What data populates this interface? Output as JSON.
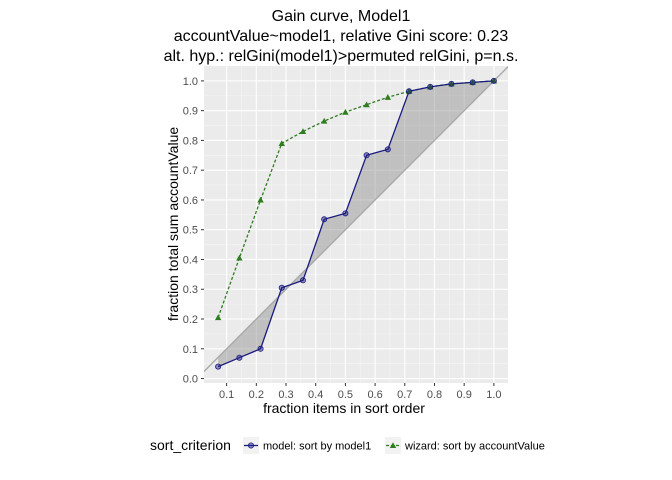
{
  "chart_data": {
    "type": "line",
    "title": [
      "Gain curve, Model1",
      "accountValue~model1, relative Gini score: 0.23",
      "alt. hyp.: relGini(model1)>permuted relGini, p=n.s."
    ],
    "xlabel": "fraction items in sort order",
    "ylabel": "fraction total sum accountValue",
    "xlim": [
      0.0238,
      1.0476
    ],
    "ylim": [
      -0.015,
      1.05
    ],
    "x_ticks": [
      0.1,
      0.2,
      0.3,
      0.4,
      0.5,
      0.6,
      0.7,
      0.8,
      0.9,
      1.0
    ],
    "x_tick_labels": [
      "0.1",
      "0.2",
      "0.3",
      "0.4",
      "0.5",
      "0.6",
      "0.7",
      "0.8",
      "0.9",
      "1.0"
    ],
    "y_ticks": [
      0.0,
      0.1,
      0.2,
      0.3,
      0.4,
      0.5,
      0.6,
      0.7,
      0.8,
      0.9,
      1.0
    ],
    "y_tick_labels": [
      "0.0",
      "0.1",
      "0.2",
      "0.3",
      "0.4",
      "0.5",
      "0.6",
      "0.7",
      "0.8",
      "0.9",
      "1.0"
    ],
    "grid": true,
    "background": "#ebebeb",
    "legend_position": "bottom",
    "legend_title": "sort_criterion",
    "diagonal": {
      "x": [
        0.0238,
        1.0476
      ],
      "y": [
        0.0238,
        1.0476
      ],
      "color": "#a9a9a9"
    },
    "shaded_area": {
      "between": [
        "model: sort by model1",
        "diagonal"
      ],
      "color": "#808080"
    },
    "series": [
      {
        "name": "model: sort by model1",
        "color": "#1a1a80",
        "line_style": "solid",
        "marker": "circle",
        "x": [
          0.0714,
          0.1429,
          0.2143,
          0.2857,
          0.3571,
          0.4286,
          0.5,
          0.5714,
          0.6429,
          0.7143,
          0.7857,
          0.8571,
          0.9286,
          1.0
        ],
        "y": [
          0.04,
          0.07,
          0.1,
          0.305,
          0.33,
          0.535,
          0.555,
          0.75,
          0.77,
          0.965,
          0.98,
          0.99,
          0.995,
          1.0
        ]
      },
      {
        "name": "wizard: sort by accountValue",
        "color": "#2e7d1e",
        "line_style": "dashed",
        "marker": "triangle",
        "x": [
          0.0714,
          0.1429,
          0.2143,
          0.2857,
          0.3571,
          0.4286,
          0.5,
          0.5714,
          0.6429,
          0.7143,
          0.7857,
          0.8571,
          0.9286,
          1.0
        ],
        "y": [
          0.205,
          0.405,
          0.6,
          0.79,
          0.83,
          0.865,
          0.895,
          0.92,
          0.945,
          0.965,
          0.98,
          0.99,
          0.995,
          1.0
        ]
      }
    ]
  }
}
